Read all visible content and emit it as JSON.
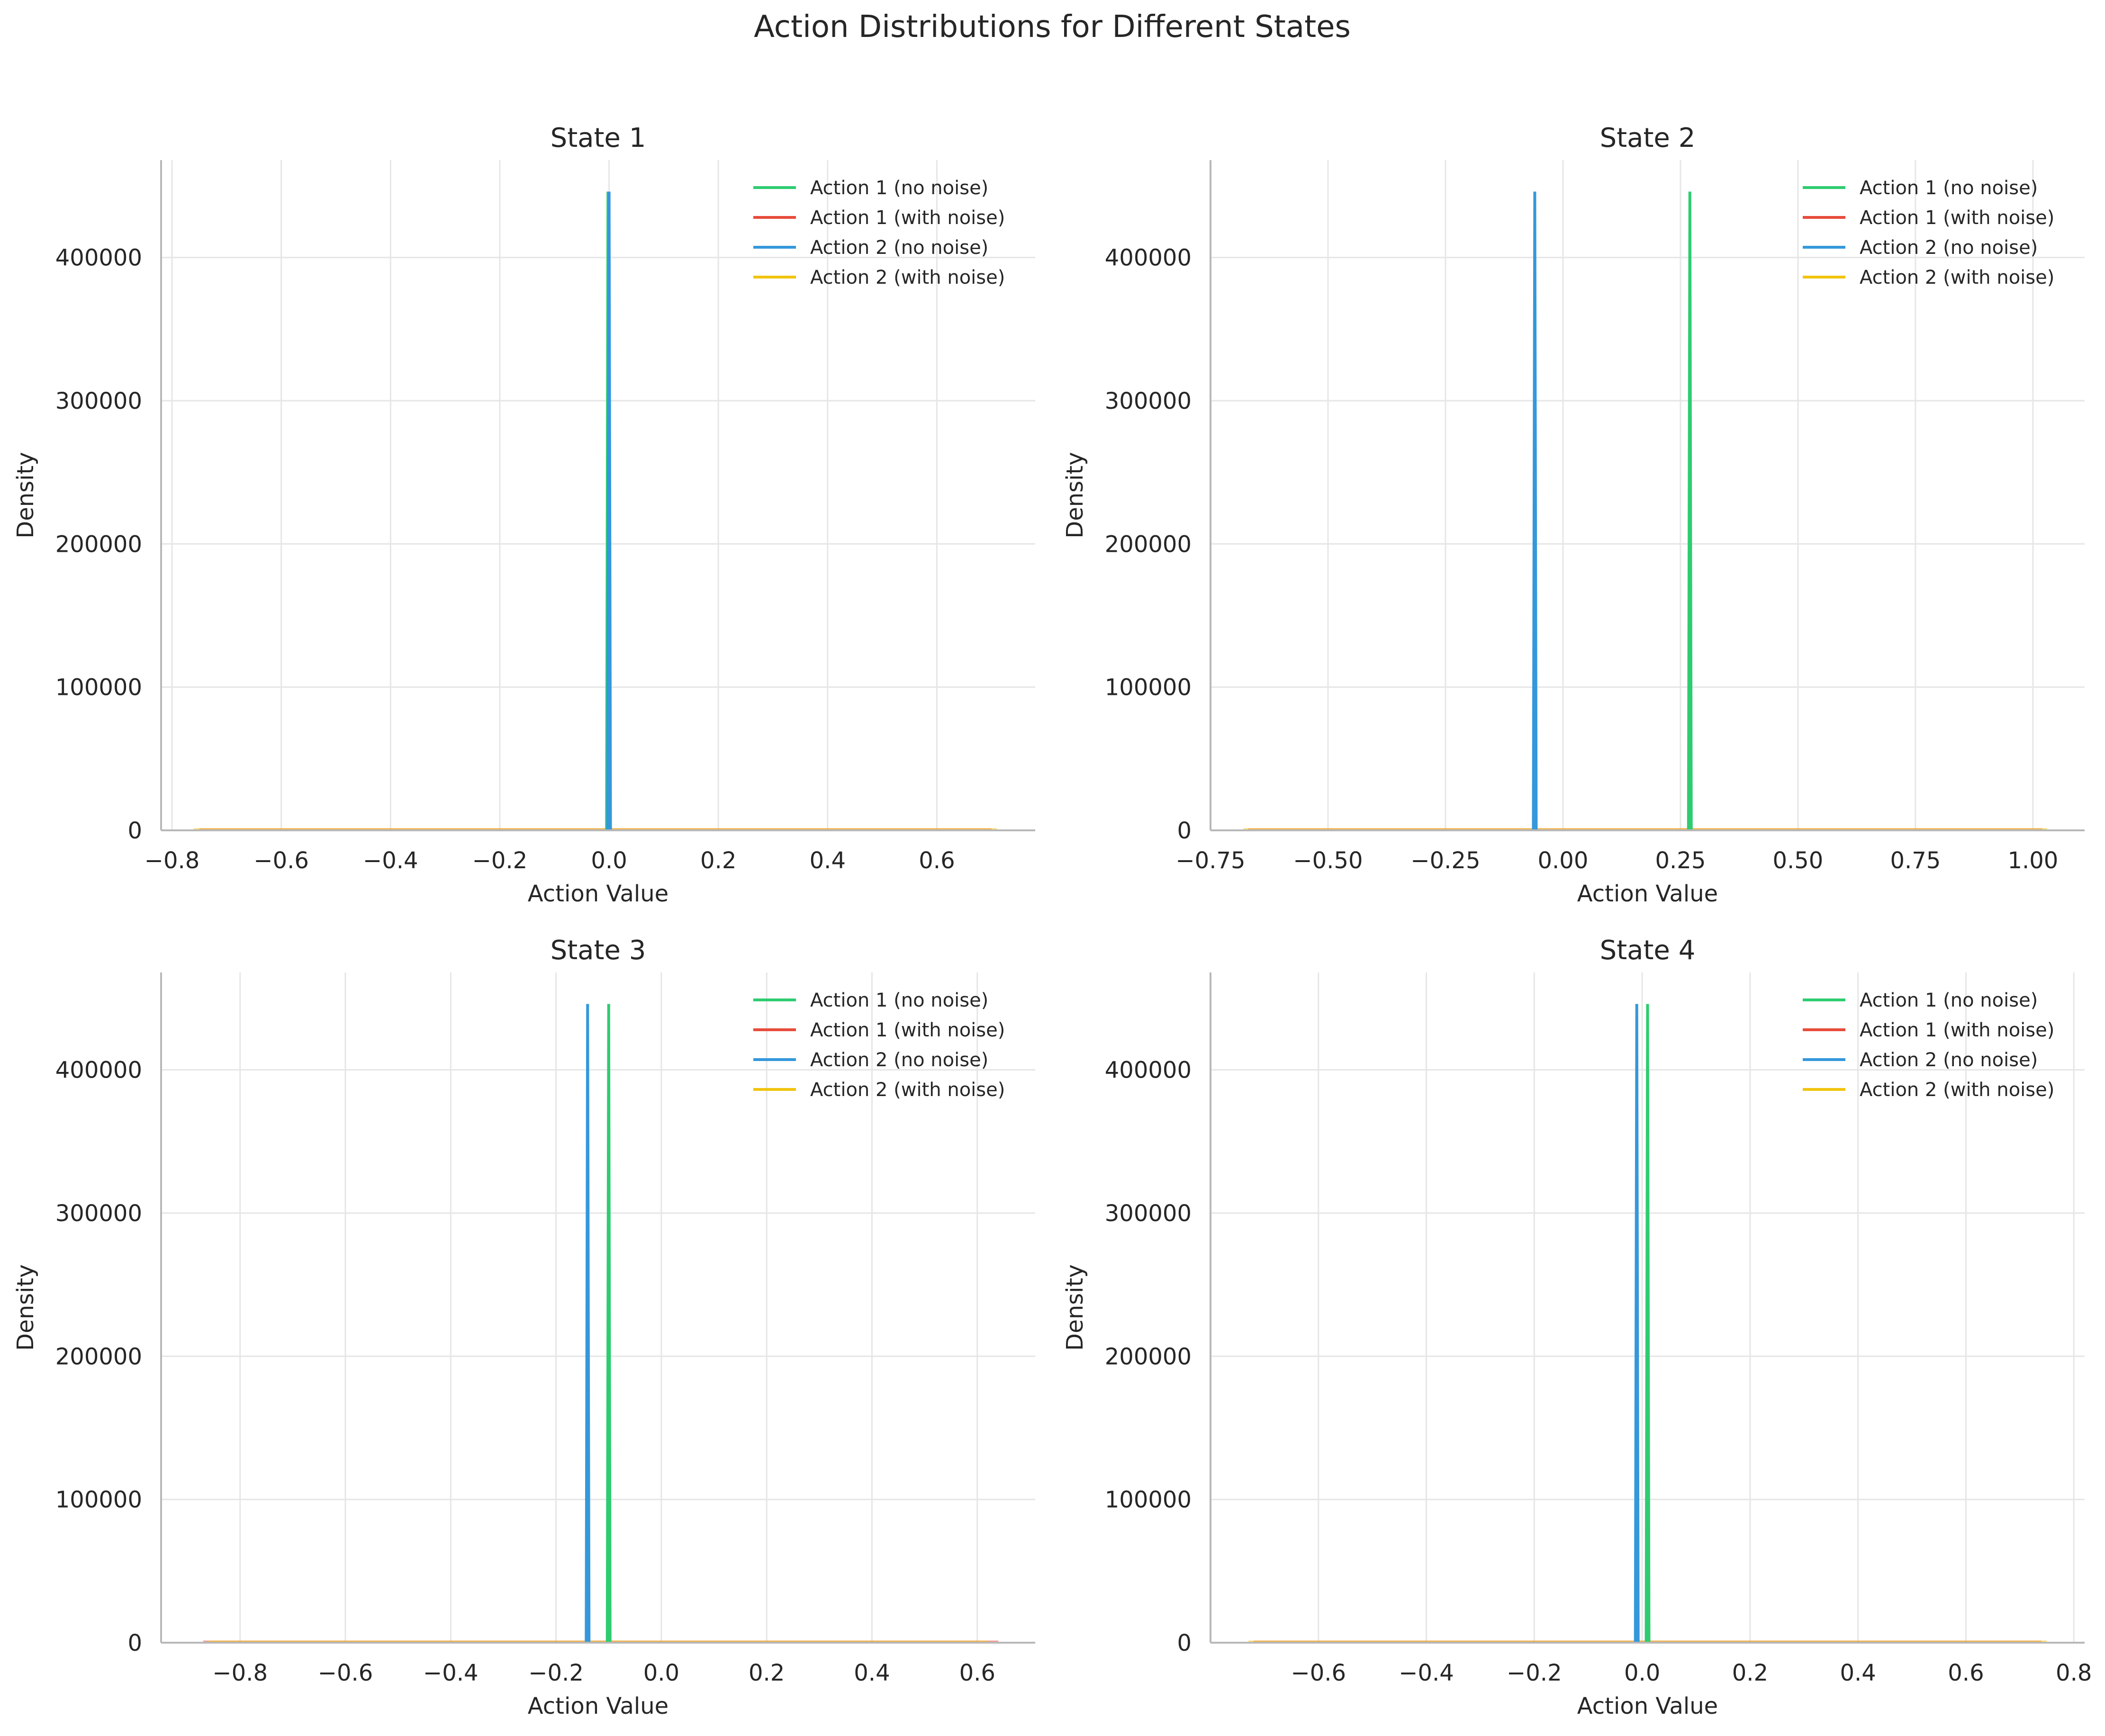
{
  "title": "Action Distributions for Different States",
  "colors": {
    "action1_no_noise": "#2ecc71",
    "action1_with_noise": "#e74c3c",
    "action2_no_noise": "#3498db",
    "action2_with_noise": "#f1c40f"
  },
  "legend_placement": "top-right",
  "grid": true,
  "chart_data": [
    {
      "type": "line",
      "title": "State 1",
      "xlabel": "Action Value",
      "ylabel": "Density",
      "xlim": [
        -0.82,
        0.78
      ],
      "ylim": [
        0,
        468000
      ],
      "xticks": [
        -0.8,
        -0.6,
        -0.4,
        -0.2,
        0.0,
        0.2,
        0.4,
        0.6
      ],
      "xtick_labels": [
        "−0.8",
        "−0.6",
        "−0.4",
        "−0.2",
        "0.0",
        "0.2",
        "0.4",
        "0.6"
      ],
      "yticks": [
        0,
        100000,
        200000,
        300000,
        400000
      ],
      "ytick_labels": [
        "0",
        "100000",
        "200000",
        "300000",
        "400000"
      ],
      "series": [
        {
          "name": "Action 1 (no noise)",
          "spike_x": -0.002,
          "peak": 446000
        },
        {
          "name": "Action 1 (with noise)",
          "x_range": [
            -0.75,
            0.7
          ],
          "density": 1
        },
        {
          "name": "Action 2 (no noise)",
          "spike_x": 0.0,
          "peak": 446000
        },
        {
          "name": "Action 2 (with noise)",
          "x_range": [
            -0.76,
            0.71
          ],
          "density": 1
        }
      ]
    },
    {
      "type": "line",
      "title": "State 2",
      "xlabel": "Action Value",
      "ylabel": "Density",
      "xlim": [
        -0.75,
        1.11
      ],
      "ylim": [
        0,
        468000
      ],
      "xticks": [
        -0.75,
        -0.5,
        -0.25,
        0.0,
        0.25,
        0.5,
        0.75,
        1.0
      ],
      "xtick_labels": [
        "−0.75",
        "−0.50",
        "−0.25",
        "0.00",
        "0.25",
        "0.50",
        "0.75",
        "1.00"
      ],
      "yticks": [
        0,
        100000,
        200000,
        300000,
        400000
      ],
      "ytick_labels": [
        "0",
        "100000",
        "200000",
        "300000",
        "400000"
      ],
      "series": [
        {
          "name": "Action 1 (no noise)",
          "spike_x": 0.27,
          "peak": 446000
        },
        {
          "name": "Action 1 (with noise)",
          "x_range": [
            -0.67,
            1.02
          ],
          "density": 1
        },
        {
          "name": "Action 2 (no noise)",
          "spike_x": -0.06,
          "peak": 446000
        },
        {
          "name": "Action 2 (with noise)",
          "x_range": [
            -0.68,
            1.03
          ],
          "density": 1
        }
      ]
    },
    {
      "type": "line",
      "title": "State 3",
      "xlabel": "Action Value",
      "ylabel": "Density",
      "xlim": [
        -0.95,
        0.71
      ],
      "ylim": [
        0,
        468000
      ],
      "xticks": [
        -0.8,
        -0.6,
        -0.4,
        -0.2,
        0.0,
        0.2,
        0.4,
        0.6
      ],
      "xtick_labels": [
        "−0.8",
        "−0.6",
        "−0.4",
        "−0.2",
        "0.0",
        "0.2",
        "0.4",
        "0.6"
      ],
      "yticks": [
        0,
        100000,
        200000,
        300000,
        400000
      ],
      "ytick_labels": [
        "0",
        "100000",
        "200000",
        "300000",
        "400000"
      ],
      "series": [
        {
          "name": "Action 1 (no noise)",
          "spike_x": -0.1,
          "peak": 446000
        },
        {
          "name": "Action 1 (with noise)",
          "x_range": [
            -0.87,
            0.64
          ],
          "density": 1
        },
        {
          "name": "Action 2 (no noise)",
          "spike_x": -0.14,
          "peak": 446000
        },
        {
          "name": "Action 2 (with noise)",
          "x_range": [
            -0.86,
            0.62
          ],
          "density": 1
        }
      ]
    },
    {
      "type": "line",
      "title": "State 4",
      "xlabel": "Action Value",
      "ylabel": "Density",
      "xlim": [
        -0.8,
        0.82
      ],
      "ylim": [
        0,
        468000
      ],
      "xticks": [
        -0.6,
        -0.4,
        -0.2,
        0.0,
        0.2,
        0.4,
        0.6,
        0.8
      ],
      "xtick_labels": [
        "−0.6",
        "−0.4",
        "−0.2",
        "0.0",
        "0.2",
        "0.4",
        "0.6",
        "0.8"
      ],
      "yticks": [
        0,
        100000,
        200000,
        300000,
        400000
      ],
      "ytick_labels": [
        "0",
        "100000",
        "200000",
        "300000",
        "400000"
      ],
      "series": [
        {
          "name": "Action 1 (no noise)",
          "spike_x": 0.01,
          "peak": 446000
        },
        {
          "name": "Action 1 (with noise)",
          "x_range": [
            -0.72,
            0.74
          ],
          "density": 1
        },
        {
          "name": "Action 2 (no noise)",
          "spike_x": -0.01,
          "peak": 446000
        },
        {
          "name": "Action 2 (with noise)",
          "x_range": [
            -0.73,
            0.75
          ],
          "density": 1
        }
      ]
    }
  ]
}
